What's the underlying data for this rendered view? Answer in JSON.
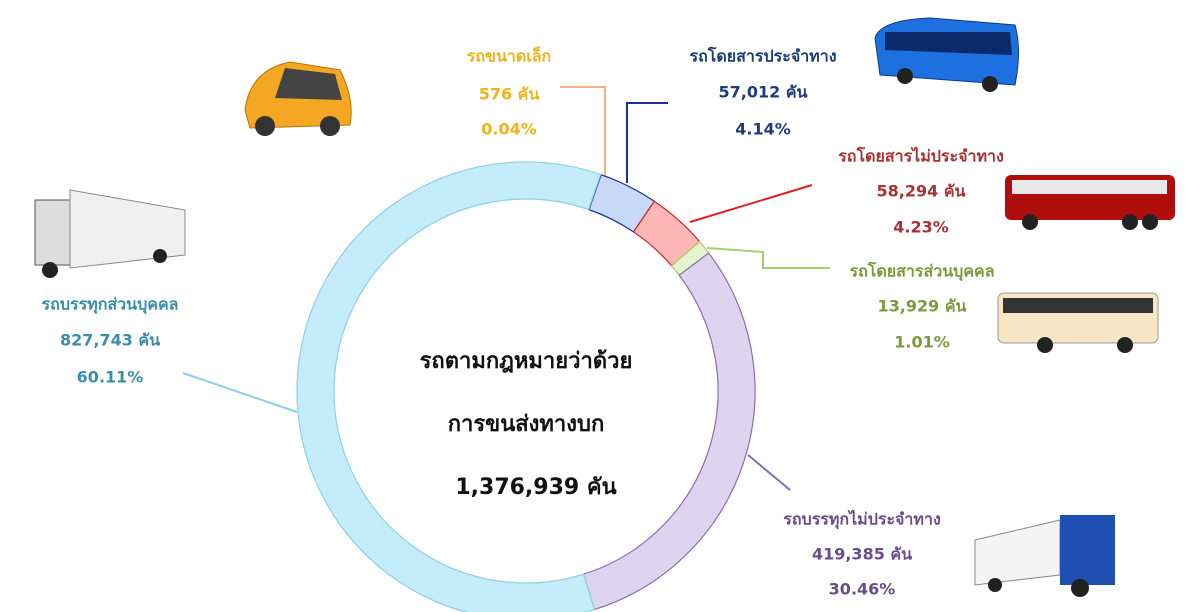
{
  "chart_data": {
    "type": "donut",
    "center_title": [
      "รถตามกฎหมายว่าด้วย",
      "การขนส่งทางบก"
    ],
    "total": 1376939,
    "total_label": "1,376,939 คัน",
    "categories": [
      "รถขนาดเล็ก",
      "รถโดยสารประจำทาง",
      "รถโดยสารไม่ประจำทาง",
      "รถโดยสารส่วนบุคคล",
      "รถบรรทุกไม่ประจำทาง",
      "รถบรรทุกส่วนบุคคล"
    ],
    "values": [
      576,
      57012,
      58294,
      13929,
      419385,
      827743
    ],
    "value_labels": [
      "576 คัน",
      "57,012 คัน",
      "58,294 คัน",
      "13,929 คัน",
      "419,385 คัน",
      "827,743 คัน"
    ],
    "percent_labels": [
      "0.04%",
      "4.14%",
      "4.23%",
      "1.01%",
      "30.46%",
      "60.11%"
    ],
    "colors": [
      "#f4b183",
      "#c9daf8",
      "#ffb8b8",
      "#e6f3cf",
      "#ddd5f0",
      "#c4ecfb"
    ],
    "label_colors": [
      "#f0b21d",
      "#1f3c7a",
      "#a83232",
      "#7a9a3c",
      "#6b4c8a",
      "#3a8ea5"
    ],
    "line_colors": [
      "#f4b183",
      "#1a2fa0",
      "#e02020",
      "#a9cf6a",
      "#8a70aa",
      "#8fd0e2"
    ]
  }
}
